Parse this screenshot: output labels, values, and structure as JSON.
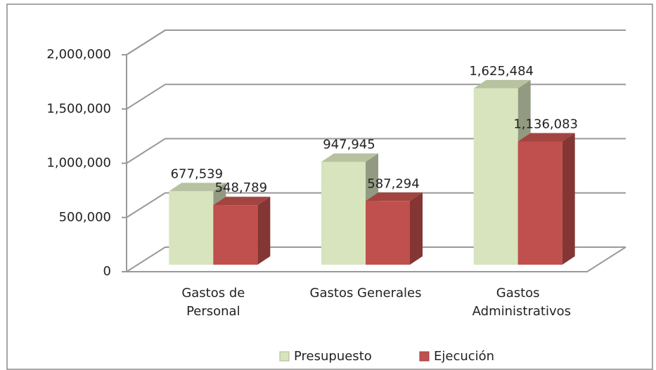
{
  "chart_data": {
    "type": "bar3d",
    "categories": [
      "Gastos de Personal",
      "Gastos Generales",
      "Gastos Administrativos"
    ],
    "series": [
      {
        "name": "Presupuesto",
        "color": "#d7e4bd",
        "values": [
          677539,
          947945,
          1625484
        ],
        "value_labels": [
          "677,539",
          "947,945",
          "1,625,484"
        ]
      },
      {
        "name": "Ejecución",
        "color": "#c0504d",
        "values": [
          548789,
          587294,
          1136083
        ],
        "value_labels": [
          "548,789",
          "587,294",
          "1,136,083"
        ]
      }
    ],
    "ylim": [
      0,
      2000000
    ],
    "yticks": [
      0,
      {
        "value": 500000,
        "label": "500,000"
      },
      {
        "value": 1000000,
        "label": "1,000,000"
      },
      {
        "value": 1500000,
        "label": "1,500,000"
      },
      {
        "value": 2000000,
        "label": "2,000,000"
      }
    ],
    "grid": true,
    "legend": "bottom"
  }
}
